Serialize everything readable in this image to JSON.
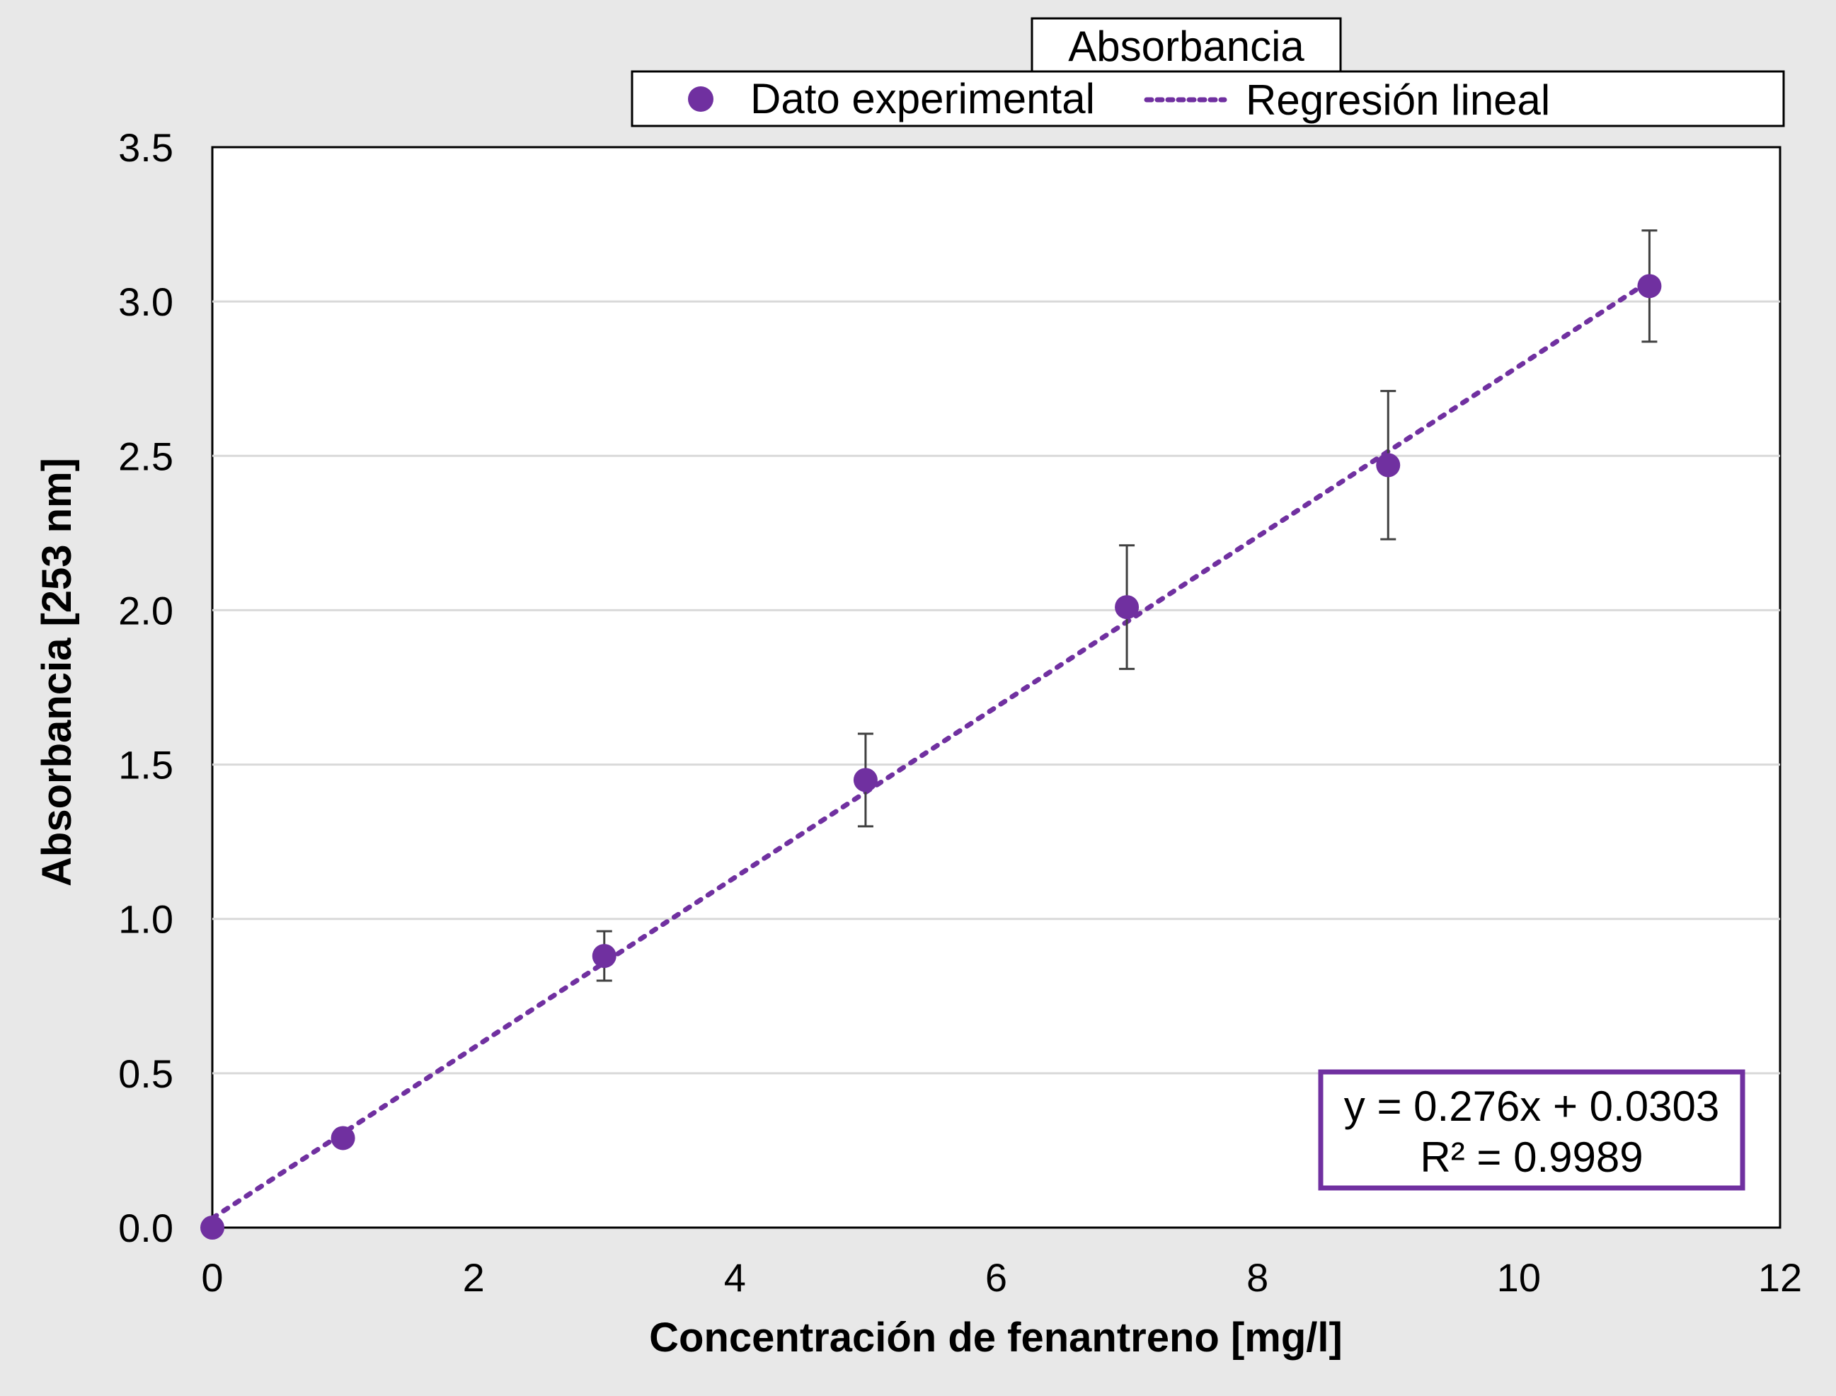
{
  "chart_data": {
    "type": "scatter",
    "title": "Absorbancia",
    "xlabel": "Concentración de fenantreno [mg/l]",
    "ylabel": "Absorbancia [253 nm]",
    "xlim": [
      0,
      12
    ],
    "ylim": [
      0,
      3.5
    ],
    "x_ticks": [
      "0",
      "2",
      "4",
      "6",
      "8",
      "10",
      "12"
    ],
    "y_ticks": [
      "0.0",
      "0.5",
      "1.0",
      "1.5",
      "2.0",
      "2.5",
      "3.0",
      "3.5"
    ],
    "grid": "horizontal",
    "legend_position": "top",
    "series": [
      {
        "name": "Dato experimental",
        "kind": "scatter",
        "color": "#7030a0",
        "x": [
          0,
          1,
          3,
          5,
          7,
          9,
          11
        ],
        "y": [
          0.0,
          0.29,
          0.88,
          1.45,
          2.01,
          2.47,
          3.05
        ],
        "error": [
          0,
          0,
          0.08,
          0.15,
          0.2,
          0.24,
          0.18
        ]
      },
      {
        "name": "Regresión lineal",
        "kind": "trendline",
        "color": "#7030a0",
        "slope": 0.276,
        "intercept": 0.0303,
        "x_range": [
          0,
          11
        ]
      }
    ],
    "annotation": {
      "equation": "y = 0.276x + 0.0303",
      "r_squared": "R² = 0.9989"
    }
  }
}
